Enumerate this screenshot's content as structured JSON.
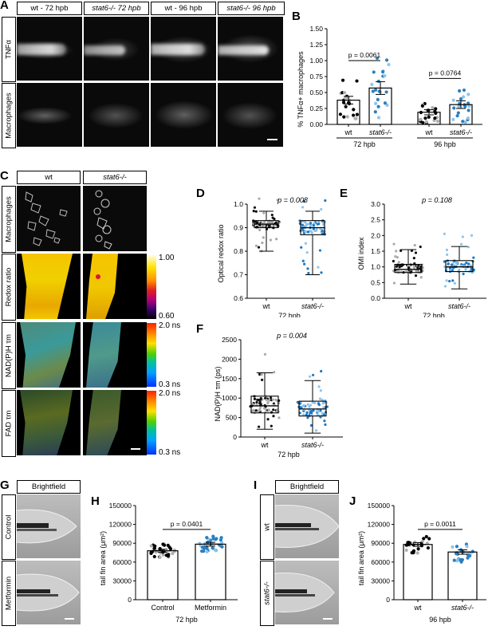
{
  "panels": {
    "A": {
      "letter": "A",
      "headers": [
        "wt - 72 hpb",
        "stat6-/- 72 hpb",
        "wt - 96 hpb",
        "stat6-/- 96 hpb"
      ],
      "rows": [
        "TNFα",
        "Macrophages"
      ]
    },
    "B": {
      "letter": "B"
    },
    "C": {
      "letter": "C",
      "headers": [
        "wt",
        "stat6-/-"
      ],
      "rows": [
        "Macrophages",
        "Redox ratio",
        "NAD(P)H τm",
        "FAD τm"
      ],
      "scale_redox": [
        "1.00",
        "0.60"
      ],
      "scale_nadh": [
        "2.0 ns",
        "0.3 ns"
      ],
      "scale_fad": [
        "2.0 ns",
        "0.3 ns"
      ]
    },
    "D": {
      "letter": "D"
    },
    "E": {
      "letter": "E"
    },
    "F": {
      "letter": "F"
    },
    "G": {
      "letter": "G",
      "header": "Brightfield",
      "rows": [
        "Control",
        "Metformin"
      ]
    },
    "H": {
      "letter": "H"
    },
    "I": {
      "letter": "I",
      "header": "Brightfield",
      "rows": [
        "wt",
        "stat6-/-"
      ]
    },
    "J": {
      "letter": "J"
    }
  },
  "chart_data": [
    {
      "id": "B",
      "type": "bar",
      "ylabel": "% TNFα+ macrophages",
      "ylim": [
        0,
        1.5
      ],
      "yticks": [
        "0.00",
        "0.25",
        "0.50",
        "0.75",
        "1.00",
        "1.25",
        "1.50"
      ],
      "categories": [
        "wt",
        "stat6-/-",
        "wt",
        "stat6-/-"
      ],
      "groups": [
        "72 hpb",
        "96 hpb"
      ],
      "values": [
        0.38,
        0.57,
        0.19,
        0.31
      ],
      "sem": [
        0.06,
        0.1,
        0.04,
        0.06
      ],
      "pvalues": [
        "p = 0.0061",
        "p = 0.0764"
      ],
      "colors": [
        "#000000",
        "#2a7fc0"
      ]
    },
    {
      "id": "D",
      "type": "box",
      "ylabel": "Optical redox ratio",
      "ylim": [
        0.6,
        1.0
      ],
      "yticks": [
        "0.6",
        "0.7",
        "0.8",
        "0.9",
        "1.0"
      ],
      "categories": [
        "wt",
        "stat6-/-"
      ],
      "xlabel": "72 hpb",
      "pvalue": "p = 0.008",
      "boxes": [
        {
          "min": 0.8,
          "q1": 0.9,
          "median": 0.915,
          "q3": 0.93,
          "max": 0.97
        },
        {
          "min": 0.7,
          "q1": 0.87,
          "median": 0.9,
          "q3": 0.93,
          "max": 0.97
        }
      ]
    },
    {
      "id": "E",
      "type": "box",
      "ylabel": "OMI index",
      "ylim": [
        0.0,
        3.0
      ],
      "yticks": [
        "0.0",
        "0.5",
        "1.0",
        "1.5",
        "2.0",
        "2.5",
        "3.0"
      ],
      "categories": [
        "wt",
        "stat6-/-"
      ],
      "xlabel": "72 hpb",
      "pvalue": "p = 0.108",
      "boxes": [
        {
          "min": 0.45,
          "q1": 0.82,
          "median": 0.92,
          "q3": 1.08,
          "max": 1.55
        },
        {
          "min": 0.3,
          "q1": 0.85,
          "median": 1.0,
          "q3": 1.2,
          "max": 1.65
        }
      ]
    },
    {
      "id": "F",
      "type": "box",
      "ylabel": "NAD(P)H τm (ps)",
      "ylim": [
        0,
        2500
      ],
      "yticks": [
        "0",
        "500",
        "1000",
        "1500",
        "2000",
        "2500"
      ],
      "categories": [
        "wt",
        "stat6-/-"
      ],
      "xlabel": "72 hpb",
      "pvalue": "p = 0.004",
      "boxes": [
        {
          "min": 200,
          "q1": 620,
          "median": 800,
          "q3": 1050,
          "max": 1650
        },
        {
          "min": 100,
          "q1": 540,
          "median": 720,
          "q3": 920,
          "max": 1450
        }
      ]
    },
    {
      "id": "H",
      "type": "bar",
      "ylabel": "tail fin area (μm²)",
      "ylim": [
        0,
        150000
      ],
      "yticks": [
        "0",
        "30000",
        "60000",
        "90000",
        "120000",
        "150000"
      ],
      "categories": [
        "Control",
        "Metformin"
      ],
      "xlabel": "72 hpb",
      "values": [
        78000,
        88500
      ],
      "sem": [
        2500,
        3000
      ],
      "pvalue": "p = 0.0401",
      "colors": [
        "#000000",
        "#2a7fc0"
      ]
    },
    {
      "id": "J",
      "type": "bar",
      "ylabel": "tail fin area (μm²)",
      "ylim": [
        0,
        150000
      ],
      "yticks": [
        "0",
        "30000",
        "60000",
        "90000",
        "120000",
        "150000"
      ],
      "categories": [
        "wt",
        "stat6-/-"
      ],
      "xlabel": "96 hpb",
      "values": [
        88000,
        76000
      ],
      "sem": [
        3000,
        3500
      ],
      "pvalue": "p = 0.0011",
      "colors": [
        "#000000",
        "#2a7fc0"
      ]
    }
  ]
}
